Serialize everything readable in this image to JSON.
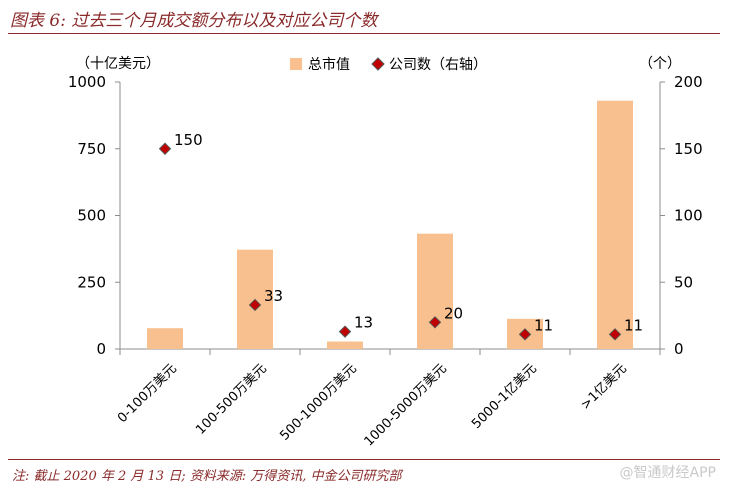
{
  "header": {
    "title": "图表 6:  过去三个月成交额分布以及对应公司个数"
  },
  "footer": {
    "source": "注: 截止 2020 年 2 月 13 日; 资料来源: 万得资讯, 中金公司研究部"
  },
  "watermark": {
    "text": "@智通财经APP"
  },
  "chart_data": {
    "type": "bar",
    "categories": [
      "0-100万美元",
      "100-500万美元",
      "500-1000万美元",
      "1000-5000万美元",
      "5000-1亿美元",
      ">1亿美元"
    ],
    "series": [
      {
        "name": "总市值",
        "type": "bar",
        "axis": "left",
        "color": "#f8c08e",
        "values": [
          78,
          372,
          28,
          432,
          113,
          930
        ]
      },
      {
        "name": "公司数（右轴）",
        "type": "scatter",
        "axis": "right",
        "color": "#c00000",
        "values": [
          150,
          33,
          13,
          20,
          11,
          11
        ],
        "data_labels": [
          "150",
          "33",
          "13",
          "20",
          "11",
          "11"
        ]
      }
    ],
    "ylabel": "（十亿美元）",
    "y2label": "（个）",
    "ylim": [
      0,
      1000
    ],
    "y2lim": [
      0,
      200
    ],
    "yticks": [
      0,
      250,
      500,
      750,
      1000
    ],
    "y2ticks": [
      0,
      50,
      100,
      150,
      200
    ],
    "grid": false,
    "legend": "top-center"
  }
}
